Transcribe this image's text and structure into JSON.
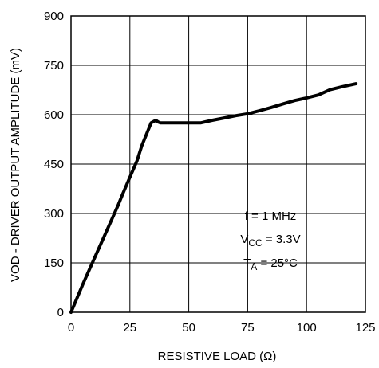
{
  "chart_data": {
    "type": "line",
    "title": "",
    "xlabel": "RESISTIVE LOAD (Ω)",
    "ylabel": "VOD - DRIVER OUTPUT AMPLITUDE  (mV)",
    "xlim": [
      0,
      125
    ],
    "ylim": [
      0,
      900
    ],
    "xticks": [
      0,
      25,
      50,
      75,
      100,
      125
    ],
    "yticks": [
      0,
      150,
      300,
      450,
      600,
      750,
      900
    ],
    "grid": true,
    "series": [
      {
        "x": [
          0,
          5,
          10,
          15,
          20,
          22,
          25,
          28,
          30,
          32,
          34,
          36,
          37,
          38,
          40,
          45,
          50,
          55,
          60,
          65,
          70,
          75,
          80,
          85,
          90,
          95,
          100,
          105,
          110,
          115,
          121
        ],
        "y": [
          0,
          85,
          165,
          245,
          325,
          360,
          410,
          460,
          505,
          540,
          575,
          583,
          578,
          575,
          575,
          575,
          575,
          575,
          583,
          590,
          597,
          603,
          612,
          622,
          633,
          643,
          651,
          660,
          676,
          685,
          694
        ]
      }
    ],
    "annotations": {
      "freq": "f = 1 MHz",
      "vcc_prefix": "V",
      "vcc_sub": "CC",
      "vcc_value": " = 3.3V",
      "ta_prefix": "T",
      "ta_sub": "A",
      "ta_value": " = 25°C"
    }
  }
}
